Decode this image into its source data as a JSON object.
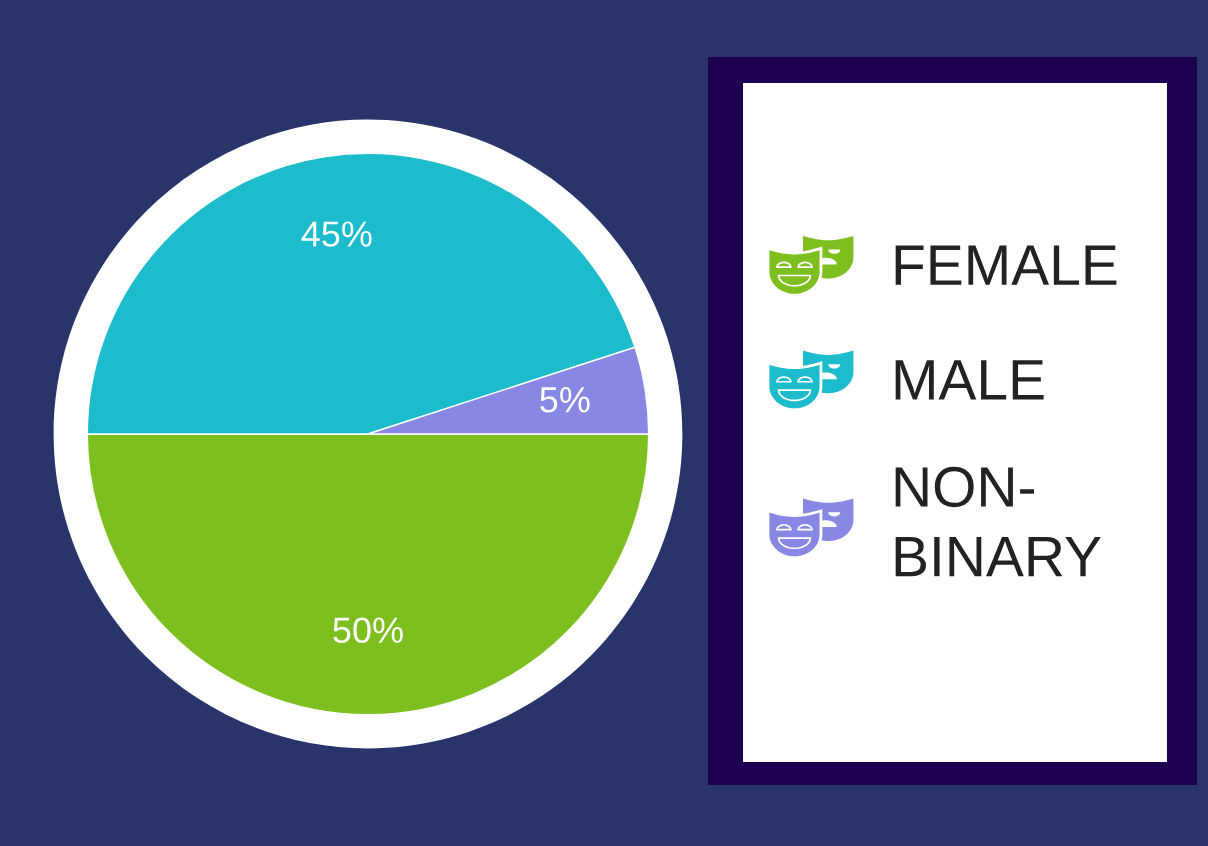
{
  "chart_data": {
    "type": "pie",
    "categories": [
      "FEMALE",
      "MALE",
      "NON-BINARY"
    ],
    "values": [
      50,
      45,
      5
    ],
    "colors": [
      "#7dbf1e",
      "#1cbccc",
      "#8888e4"
    ],
    "value_labels": [
      "50%",
      "45%",
      "5%"
    ],
    "legend": "right"
  }
}
